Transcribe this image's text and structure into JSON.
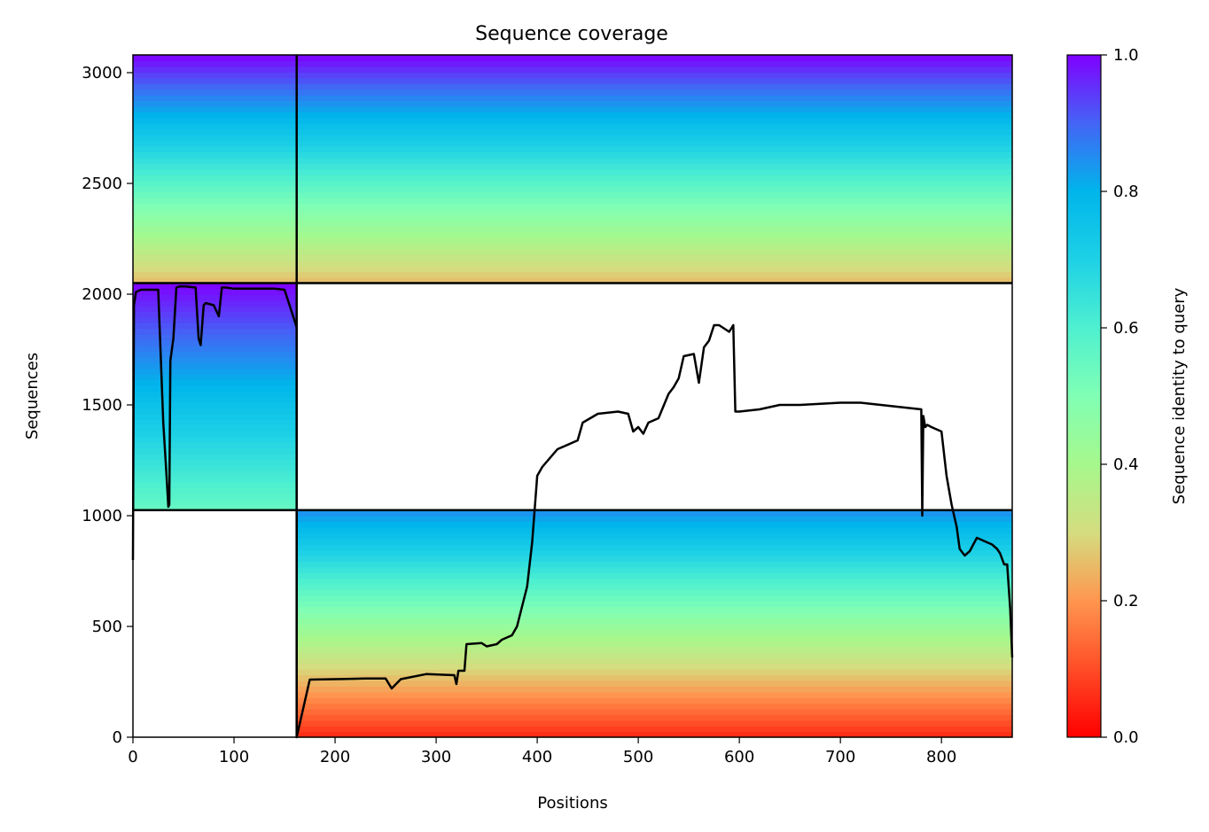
{
  "chart_data": {
    "type": "heatmap",
    "title": "Sequence coverage",
    "xlabel": "Positions",
    "ylabel": "Sequences",
    "xlim": [
      0,
      870
    ],
    "ylim": [
      0,
      3080
    ],
    "xticks": [
      0,
      100,
      200,
      300,
      400,
      500,
      600,
      700,
      800
    ],
    "yticks": [
      0,
      500,
      1000,
      1500,
      2000,
      2500,
      3000
    ],
    "colorbar": {
      "label": "Sequence identity to query",
      "range": [
        0.0,
        1.0
      ],
      "ticks": [
        "0.0",
        "0.2",
        "0.4",
        "0.6",
        "0.8",
        "1.0"
      ],
      "colormap": "rainbow_r"
    },
    "chain_boundaries": {
      "positions": [
        162
      ],
      "sequences": [
        1025,
        2050
      ]
    },
    "blocks": [
      {
        "x": [
          0,
          162
        ],
        "y": [
          1025,
          2050
        ],
        "identity_top": 1.0,
        "identity_bottom": 0.55
      },
      {
        "x": [
          0,
          162
        ],
        "y": [
          2050,
          3080
        ],
        "identity_top": 1.0,
        "identity_bottom": 0.25
      },
      {
        "x": [
          162,
          870
        ],
        "y": [
          2050,
          3080
        ],
        "identity_top": 1.0,
        "identity_bottom": 0.25
      },
      {
        "x": [
          162,
          870
        ],
        "y": [
          0,
          1025
        ],
        "identity_top": 0.85,
        "identity_bottom": 0.05
      }
    ],
    "coverage_line": {
      "x": [
        0,
        1,
        3,
        8,
        15,
        25,
        30,
        33,
        35,
        36,
        37,
        40,
        43,
        46,
        52,
        62,
        65,
        67,
        70,
        72,
        80,
        85,
        88,
        92,
        100,
        120,
        140,
        150,
        155,
        160,
        162,
        162,
        175,
        200,
        230,
        250,
        256,
        265,
        290,
        318,
        320,
        322,
        328,
        330,
        345,
        350,
        360,
        365,
        375,
        380,
        390,
        395,
        400,
        405,
        420,
        440,
        445,
        460,
        480,
        490,
        495,
        500,
        505,
        510,
        520,
        530,
        535,
        540,
        545,
        555,
        560,
        565,
        570,
        575,
        580,
        590,
        594,
        596,
        600,
        620,
        640,
        660,
        680,
        700,
        720,
        740,
        760,
        780,
        781,
        782,
        784,
        786,
        790,
        800,
        805,
        810,
        815,
        818,
        823,
        828,
        835,
        845,
        850,
        855,
        858,
        862,
        865,
        868,
        870
      ],
      "y": [
        800,
        1950,
        2010,
        2020,
        2020,
        2020,
        1420,
        1200,
        1040,
        1050,
        1700,
        1800,
        2030,
        2035,
        2035,
        2030,
        1800,
        1770,
        1950,
        1960,
        1950,
        1900,
        2030,
        2030,
        2025,
        2025,
        2025,
        2020,
        1950,
        1880,
        1850,
        0,
        260,
        262,
        265,
        265,
        220,
        262,
        285,
        280,
        240,
        300,
        300,
        420,
        425,
        410,
        420,
        440,
        460,
        500,
        680,
        880,
        1180,
        1220,
        1300,
        1340,
        1420,
        1460,
        1470,
        1460,
        1380,
        1400,
        1370,
        1420,
        1440,
        1550,
        1580,
        1620,
        1720,
        1730,
        1600,
        1760,
        1790,
        1860,
        1860,
        1830,
        1860,
        1470,
        1470,
        1480,
        1500,
        1500,
        1505,
        1510,
        1510,
        1500,
        1490,
        1480,
        1000,
        1450,
        1400,
        1410,
        1400,
        1380,
        1180,
        1050,
        950,
        850,
        820,
        840,
        900,
        880,
        870,
        850,
        830,
        780,
        780,
        580,
        360
      ]
    }
  }
}
